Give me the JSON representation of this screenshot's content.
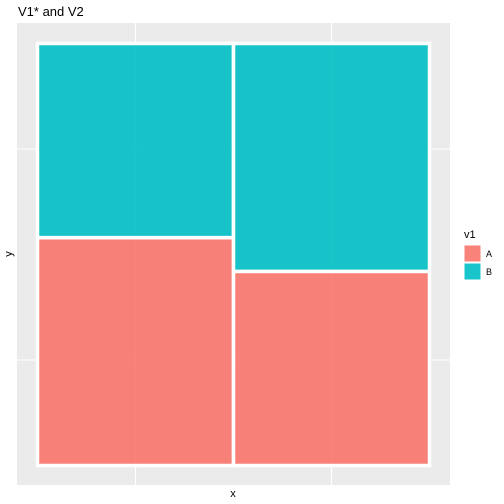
{
  "chart_data": {
    "type": "mosaic",
    "title": "V1* and V2",
    "xlabel": "x",
    "ylabel": "y",
    "xlim": [
      0,
      1
    ],
    "ylim": [
      0,
      1
    ],
    "grid": true,
    "legend": {
      "title": "v1",
      "placement": "right",
      "entries": [
        {
          "label": "A",
          "color": "#F8766D"
        },
        {
          "label": "B",
          "color": "#00BFC4"
        }
      ]
    },
    "columns": [
      {
        "width": 0.5,
        "segments": [
          {
            "series": "A",
            "proportion": 0.54
          },
          {
            "series": "B",
            "proportion": 0.46
          }
        ]
      },
      {
        "width": 0.5,
        "segments": [
          {
            "series": "A",
            "proportion": 0.46
          },
          {
            "series": "B",
            "proportion": 0.54
          }
        ]
      }
    ],
    "colors": {
      "panel_background": "#EBEBEB",
      "grid_line": "#FFFFFF",
      "text": "#000000",
      "axis_text": "#4D4D4D"
    }
  }
}
